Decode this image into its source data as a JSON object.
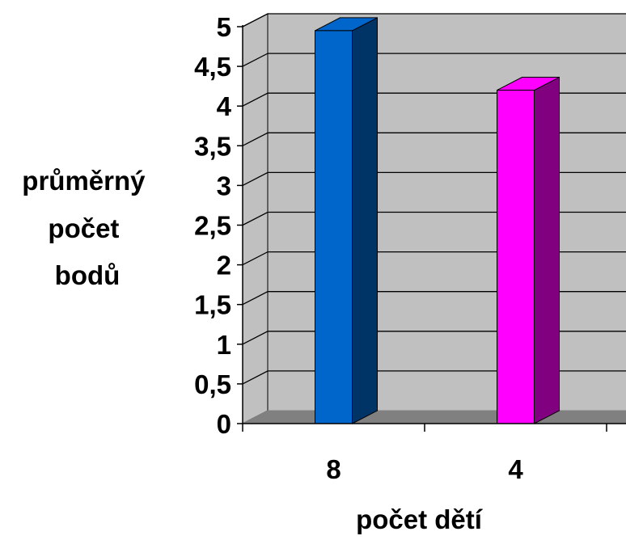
{
  "chart_data": {
    "type": "bar",
    "title": "",
    "xlabel": "počet dětí",
    "ylabel_lines": [
      "průměrný",
      "počet",
      "bodů"
    ],
    "categories": [
      "8",
      "4"
    ],
    "values": [
      4.95,
      4.2
    ],
    "ylim": [
      0,
      5
    ],
    "yticks": [
      "0",
      "0,5",
      "1",
      "1,5",
      "2",
      "2,5",
      "3",
      "3,5",
      "4",
      "4,5",
      "5"
    ],
    "grid": true,
    "legend": "none",
    "colors": {
      "wall": "#c0c0c0",
      "floor": "#808080",
      "gridline": "#000000",
      "bar_front": [
        "#0066cc",
        "#ff00ff"
      ],
      "bar_side": [
        "#003366",
        "#800080"
      ],
      "bar_top": [
        "#0066cc",
        "#ff00ff"
      ]
    }
  }
}
